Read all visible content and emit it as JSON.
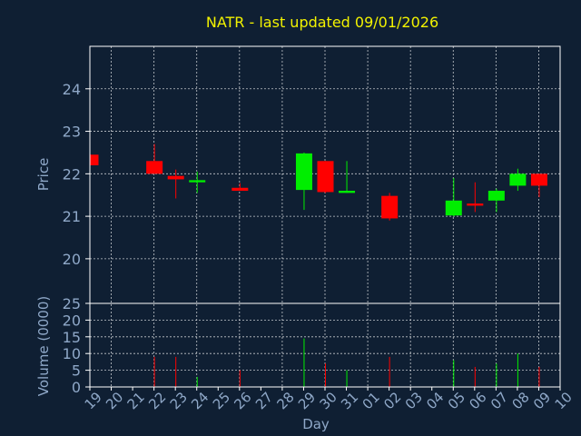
{
  "colors": {
    "up": "#00ee00",
    "down": "#ff0000",
    "background": "#0f1f33",
    "grid": "#ffffff",
    "text": "#8fa8c8",
    "title": "#f2f200"
  },
  "chart_data": {
    "type": "candlestick",
    "title": "NATR - last updated 09/01/2026",
    "xlabel": "Day",
    "ylabel": "Price",
    "volume_label": "Volume (0000)",
    "x_ticks": [
      "19",
      "20",
      "21",
      "22",
      "23",
      "24",
      "25",
      "26",
      "27",
      "28",
      "29",
      "30",
      "31",
      "01",
      "02",
      "03",
      "04",
      "05",
      "06",
      "07",
      "08",
      "09",
      "10"
    ],
    "price_ticks": [
      20,
      21,
      22,
      23,
      24
    ],
    "volume_ticks": [
      0,
      5,
      10,
      15,
      20,
      25
    ],
    "price_ylim": [
      18.95,
      25.0
    ],
    "volume_ylim": [
      0,
      25
    ],
    "grid": true,
    "candles": [
      {
        "day": "19",
        "open": 22.45,
        "high": 22.45,
        "low": 22.2,
        "close": 22.2,
        "volume": 0
      },
      {
        "day": "22",
        "open": 22.3,
        "high": 22.7,
        "low": 22.0,
        "close": 22.0,
        "volume": 9
      },
      {
        "day": "23",
        "open": 21.95,
        "high": 22.1,
        "low": 21.42,
        "close": 21.87,
        "volume": 9
      },
      {
        "day": "24",
        "open": 21.8,
        "high": 22.05,
        "low": 21.55,
        "close": 21.85,
        "volume": 3
      },
      {
        "day": "26",
        "open": 21.67,
        "high": 21.78,
        "low": 21.6,
        "close": 21.6,
        "volume": 5
      },
      {
        "day": "29",
        "open": 21.62,
        "high": 22.5,
        "low": 21.15,
        "close": 22.48,
        "volume": 14.5
      },
      {
        "day": "30",
        "open": 22.3,
        "high": 22.3,
        "low": 21.55,
        "close": 21.57,
        "volume": 7
      },
      {
        "day": "31",
        "open": 21.55,
        "high": 22.3,
        "low": 21.55,
        "close": 21.6,
        "volume": 5
      },
      {
        "day": "02",
        "open": 21.48,
        "high": 21.55,
        "low": 20.9,
        "close": 20.95,
        "volume": 9
      },
      {
        "day": "05",
        "open": 21.02,
        "high": 21.9,
        "low": 21.0,
        "close": 21.37,
        "volume": 8
      },
      {
        "day": "06",
        "open": 21.3,
        "high": 21.8,
        "low": 21.1,
        "close": 21.25,
        "volume": 6
      },
      {
        "day": "07",
        "open": 21.37,
        "high": 21.65,
        "low": 21.1,
        "close": 21.6,
        "volume": 7
      },
      {
        "day": "08",
        "open": 21.72,
        "high": 22.12,
        "low": 21.6,
        "close": 22.0,
        "volume": 10
      },
      {
        "day": "09",
        "open": 22.0,
        "high": 22.0,
        "low": 21.45,
        "close": 21.72,
        "volume": 6
      }
    ]
  }
}
